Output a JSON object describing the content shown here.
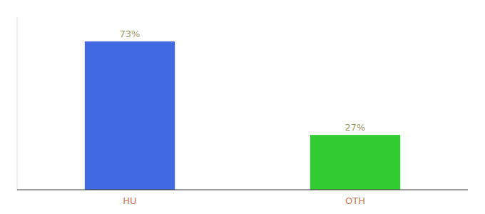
{
  "chart_data": {
    "type": "bar",
    "categories": [
      "HU",
      "OTH"
    ],
    "values": [
      73,
      27
    ],
    "colors": [
      "#4169e1",
      "#33cc33"
    ],
    "ylim": [
      0,
      85
    ],
    "data_labels": true,
    "value_labels": [
      "73%",
      "27%"
    ],
    "tick_labels": "x"
  }
}
